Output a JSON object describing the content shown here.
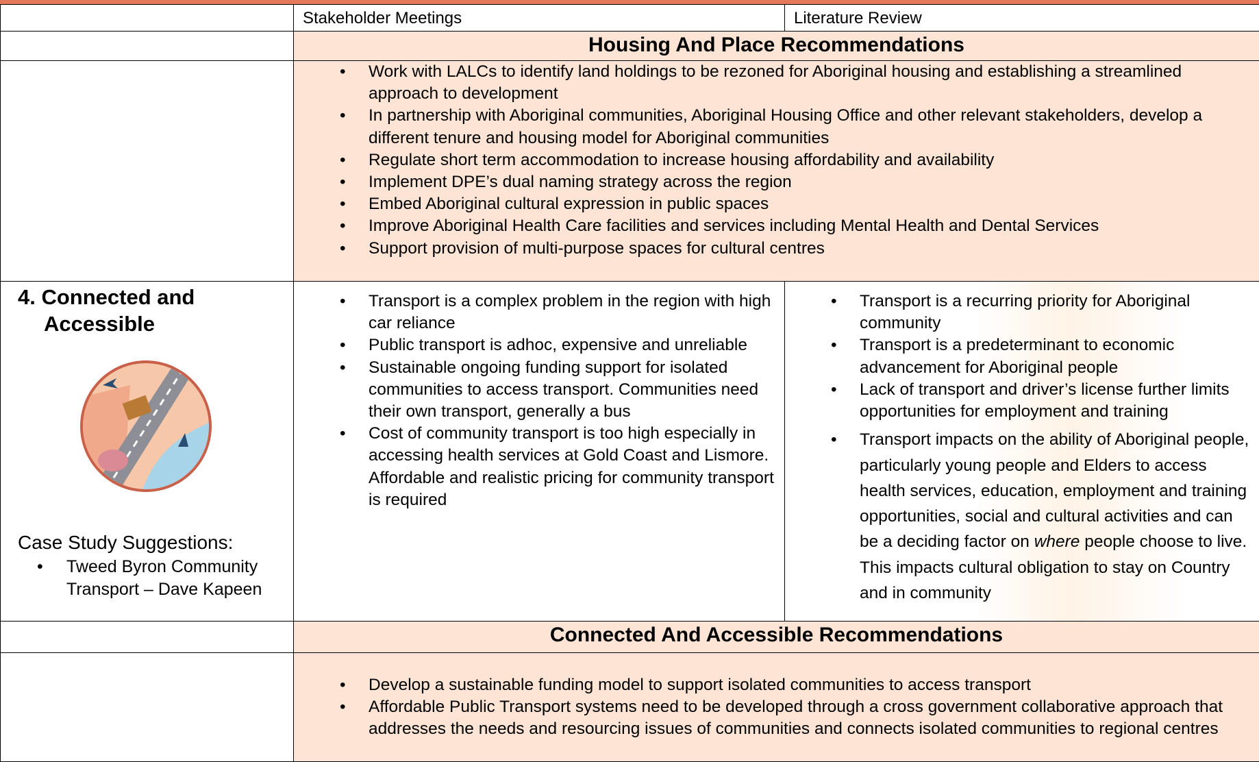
{
  "table": {
    "header": [
      "Stakeholder Meetings",
      "Literature Review"
    ],
    "sections": [
      {
        "heading": "Housing And Place Recommendations",
        "recommendations": [
          "Work with LALCs to identify land holdings to be rezoned for Aboriginal housing and establishing a streamlined approach to development",
          "In partnership with Aboriginal communities, Aboriginal Housing Office and other relevant stakeholders, develop a different tenure and housing model for Aboriginal communities",
          "Regulate short term accommodation to increase housing affordability and availability",
          "Implement DPE’s dual naming strategy across the region",
          "Embed Aboriginal cultural expression in public spaces",
          "Improve Aboriginal Health Care facilities and services including Mental Health and Dental Services",
          "Support provision of multi-purpose spaces for cultural centres"
        ]
      },
      {
        "heading": "Connected And Accessible Recommendations",
        "recommendations": [
          "Develop a sustainable funding model to support isolated communities to access transport",
          "Affordable Public Transport systems need to be developed through a cross government collaborative approach that addresses the needs and resourcing issues of communities and connects isolated communities to regional centres"
        ]
      }
    ],
    "row": {
      "title": "4. Connected and Accessible",
      "case_study_label": "Case Study Suggestions:",
      "case_studies": [
        "Tweed Byron Community Transport – Dave Kapeen"
      ],
      "stakeholder_meetings": [
        "Transport is a complex problem in the region with high car reliance",
        "Public transport is adhoc, expensive and unreliable",
        "Sustainable ongoing funding support for isolated communities to access transport. Communities need their own transport, generally a bus",
        "Cost of community transport is too high especially in accessing health services at Gold Coast and Lismore. Affordable and realistic pricing for community transport is required"
      ],
      "literature_review": [
        "Transport is a recurring priority for Aboriginal community",
        "Transport is a predeterminant to economic advancement for Aboriginal people",
        "Lack of transport and driver’s license further limits opportunities for employment and training",
        {
          "before": "Transport impacts on the ability of Aboriginal people, particularly young people and Elders to access health services, education, employment and training opportunities, social and cultural activities and can be a deciding factor on ",
          "emphasis": "where",
          "after": " people choose to live.  This impacts cultural obligation to stay on Country and in community"
        }
      ]
    }
  }
}
